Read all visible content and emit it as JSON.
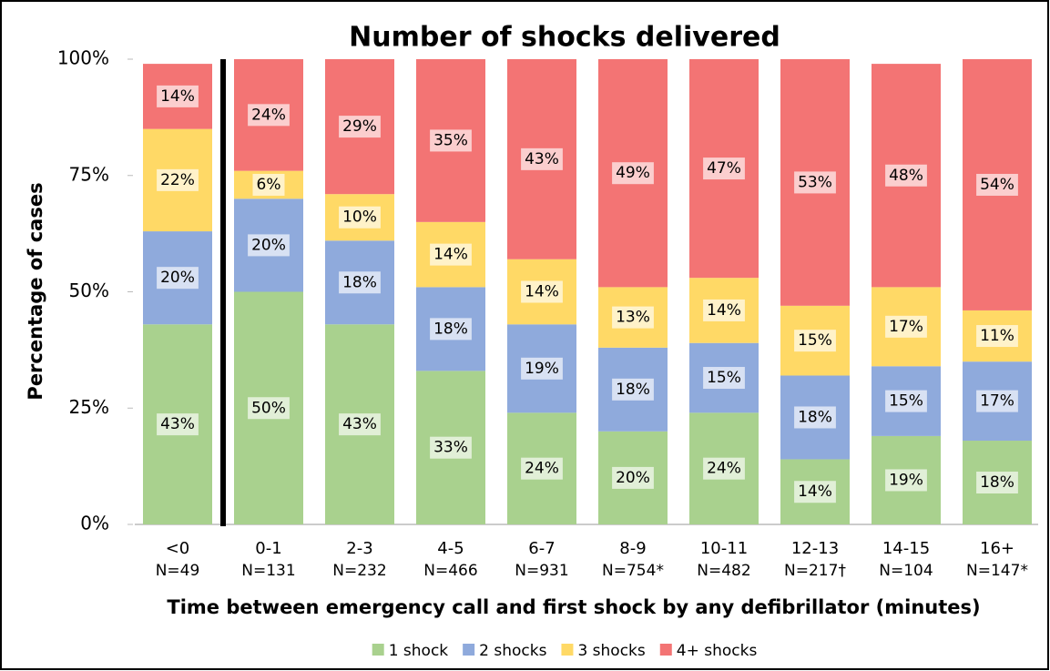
{
  "chart_data": {
    "type": "stacked_bar",
    "title": "Number of shocks delivered",
    "y_label": "Percentage of cases",
    "x_label": "Time between emergency call and first shock by any defibrillator (minutes)",
    "categories": [
      "<0",
      "0-1",
      "2-3",
      "4-5",
      "6-7",
      "8-9",
      "10-11",
      "12-13",
      "14-15",
      "16+"
    ],
    "n_labels": [
      "N=49",
      "N=131",
      "N=232",
      "N=466",
      "N=931",
      "N=754*",
      "N=482",
      "N=217†",
      "N=104",
      "N=147*"
    ],
    "series": [
      {
        "name": "1 shock",
        "color": "#a9d18e",
        "values": [
          43,
          50,
          43,
          33,
          24,
          20,
          24,
          14,
          19,
          18
        ],
        "value_labels": [
          "43%",
          "50%",
          "43%",
          "33%",
          "24%",
          "20%",
          "24%",
          "14%",
          "19%",
          "18%"
        ]
      },
      {
        "name": "2 shocks",
        "color": "#8faadc",
        "values": [
          20,
          20,
          18,
          18,
          19,
          18,
          15,
          18,
          15,
          17
        ],
        "value_labels": [
          "20%",
          "20%",
          "18%",
          "18%",
          "19%",
          "18%",
          "15%",
          "18%",
          "15%",
          "17%"
        ]
      },
      {
        "name": "3 shocks",
        "color": "#ffd966",
        "values": [
          22,
          6,
          10,
          14,
          14,
          13,
          14,
          15,
          17,
          11
        ],
        "value_labels": [
          "22%",
          "6%",
          "10%",
          "14%",
          "14%",
          "13%",
          "14%",
          "15%",
          "17%",
          "11%"
        ]
      },
      {
        "name": "4+ shocks",
        "color": "#f37474",
        "values": [
          14,
          24,
          29,
          35,
          43,
          49,
          47,
          53,
          48,
          54
        ],
        "value_labels": [
          "14%",
          "24%",
          "29%",
          "35%",
          "43%",
          "49%",
          "47%",
          "53%",
          "48%",
          "54%"
        ]
      }
    ],
    "ylim": [
      0,
      100
    ],
    "yticks": [
      {
        "value": 0,
        "label": "0%"
      },
      {
        "value": 25,
        "label": "25%"
      },
      {
        "value": 50,
        "label": "50%"
      },
      {
        "value": 75,
        "label": "75%"
      },
      {
        "value": 100,
        "label": "100%"
      }
    ]
  }
}
